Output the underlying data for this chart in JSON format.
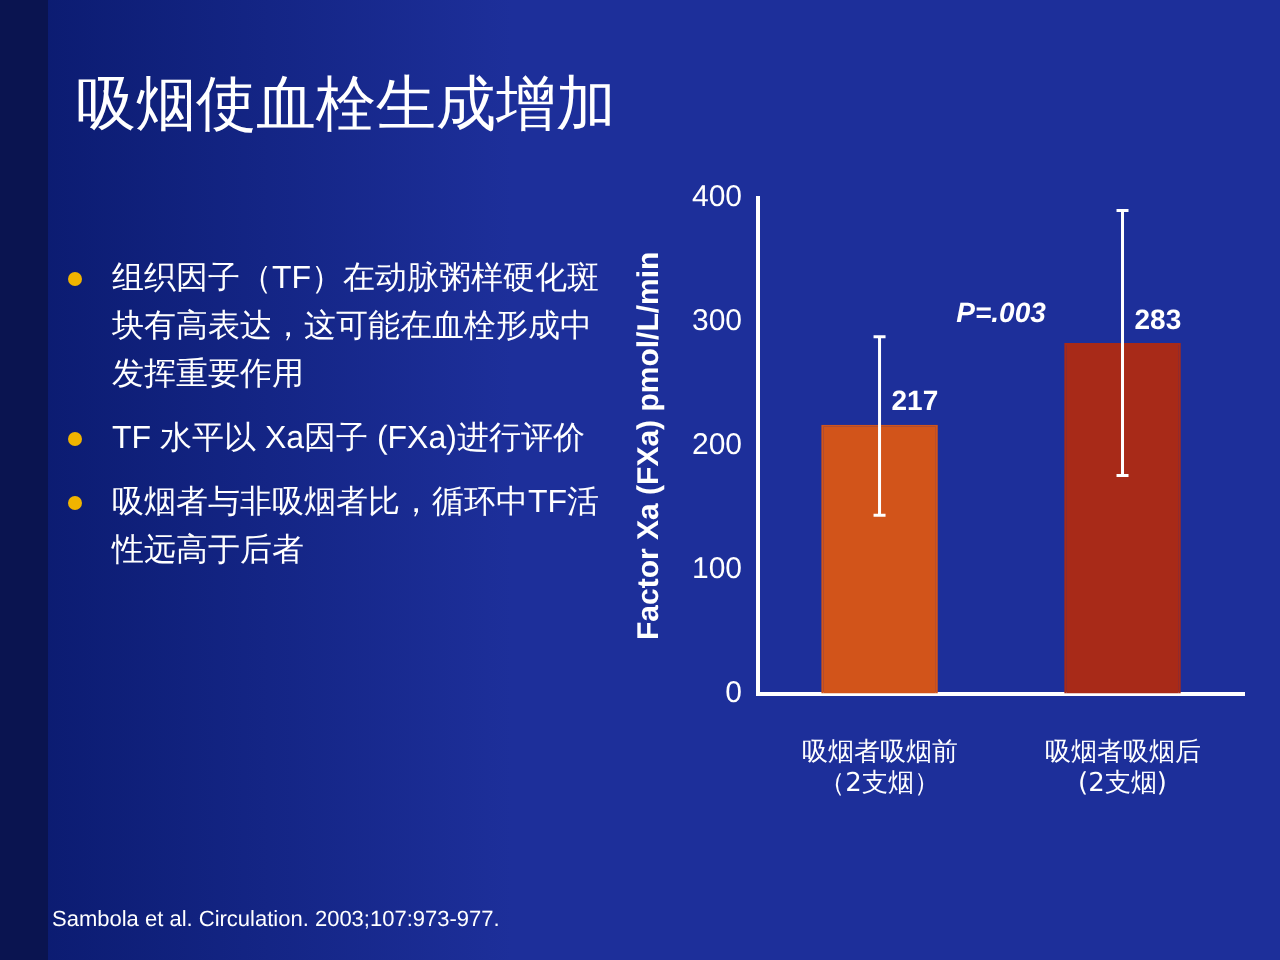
{
  "chart_data": {
    "type": "bar",
    "title": "吸烟使血栓生成增加",
    "ylabel": "Factor Xa (FXa) pmol/L/min",
    "categories": [
      "吸烟者吸烟前（2支烟）",
      "吸烟者吸烟后(2支烟)"
    ],
    "values": [
      217,
      283
    ],
    "colors": [
      "#d2541a",
      "#a82a18"
    ],
    "errors": [
      [
        144,
        288
      ],
      [
        176,
        390
      ]
    ],
    "data_labels": true,
    "ylim": [
      0,
      400
    ],
    "yticks": [
      0,
      100,
      200,
      300,
      400
    ],
    "grid": false,
    "legend": false,
    "annotations": [
      "P=.003",
      "组织因子（TF）在动脉粥样硬化斑块有高表达，这可能在血栓形成中发挥重要作用",
      "TF 水平以 Xa因子 (FXa)进行评价",
      "吸烟者与非吸烟者比，循环中TF活性远高于后者",
      "Sambola et al. Circulation. 2003;107:973-977."
    ]
  }
}
